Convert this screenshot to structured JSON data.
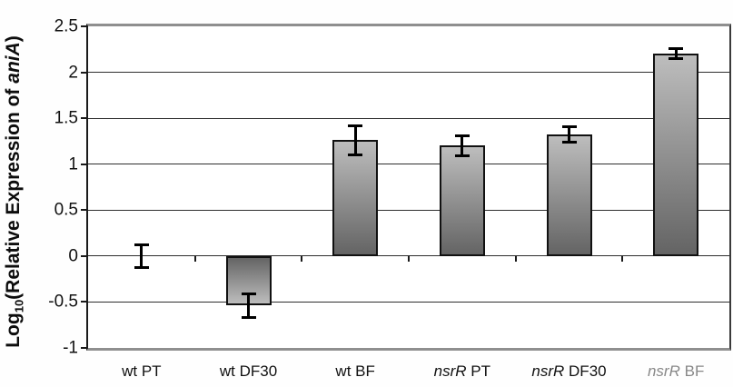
{
  "chart_data": {
    "type": "bar",
    "title": "",
    "xlabel": "",
    "ylabel": {
      "text": "Log10(Relative Expression of aniA)",
      "pre": "Log",
      "sub": "10",
      "mid": "(Relative Expression of ",
      "italic": "aniA",
      "post": ")"
    },
    "ylim": [
      -1,
      2.5
    ],
    "yticks": [
      2.5,
      2,
      1.5,
      1,
      0.5,
      0,
      -0.5,
      -1
    ],
    "ytick_labels": [
      "2.5",
      "2",
      "1.5",
      "1",
      "0.5",
      "0",
      "-0.5",
      "-1"
    ],
    "grid": true,
    "legend": false,
    "categories": [
      {
        "label": "wt PT",
        "italic_part": "",
        "rest": "wt PT",
        "faded": false
      },
      {
        "label": "wt DF30",
        "italic_part": "",
        "rest": "wt DF30",
        "faded": false
      },
      {
        "label": "wt BF",
        "italic_part": "",
        "rest": "wt BF",
        "faded": false
      },
      {
        "label": "nsrR PT",
        "italic_part": "nsrR",
        "rest": " PT",
        "faded": false
      },
      {
        "label": "nsrR DF30",
        "italic_part": "nsrR",
        "rest": " DF30",
        "faded": false
      },
      {
        "label": "nsrR BF",
        "italic_part": "nsrR",
        "rest": " BF",
        "faded": true
      }
    ],
    "values": [
      0.0,
      -0.54,
      1.26,
      1.2,
      1.32,
      2.2
    ],
    "errors": [
      0.13,
      0.13,
      0.16,
      0.11,
      0.09,
      0.06
    ],
    "colors": {
      "bar_gradient_light": "#bdbdbd",
      "bar_gradient_dark": "#646464",
      "bar_border": "#111111",
      "gridline": "#2e2e2e",
      "axis": "#1a1a1a",
      "chart_border": "#8f8f8f",
      "error_bar": "#000000",
      "text": "#111111"
    }
  }
}
